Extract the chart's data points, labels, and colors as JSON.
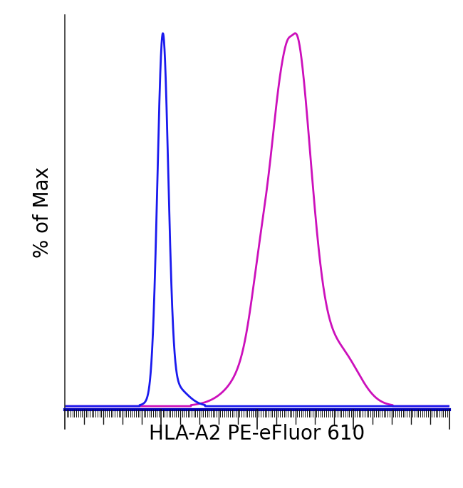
{
  "title": "",
  "xlabel": "HLA-A2 PE-eFluor 610",
  "ylabel": "% of Max",
  "xlabel_fontsize": 20,
  "ylabel_fontsize": 20,
  "background_color": "#ffffff",
  "plot_bg_color": "#ffffff",
  "blue_color": "#1a1aee",
  "magenta_color": "#cc10bb",
  "xlim": [
    0,
    1
  ],
  "ylim": [
    -0.01,
    1.05
  ],
  "axis_line_color": "#0000bb",
  "axis_linewidth": 3.0,
  "tick_color": "#111111",
  "line_linewidth": 2.0
}
